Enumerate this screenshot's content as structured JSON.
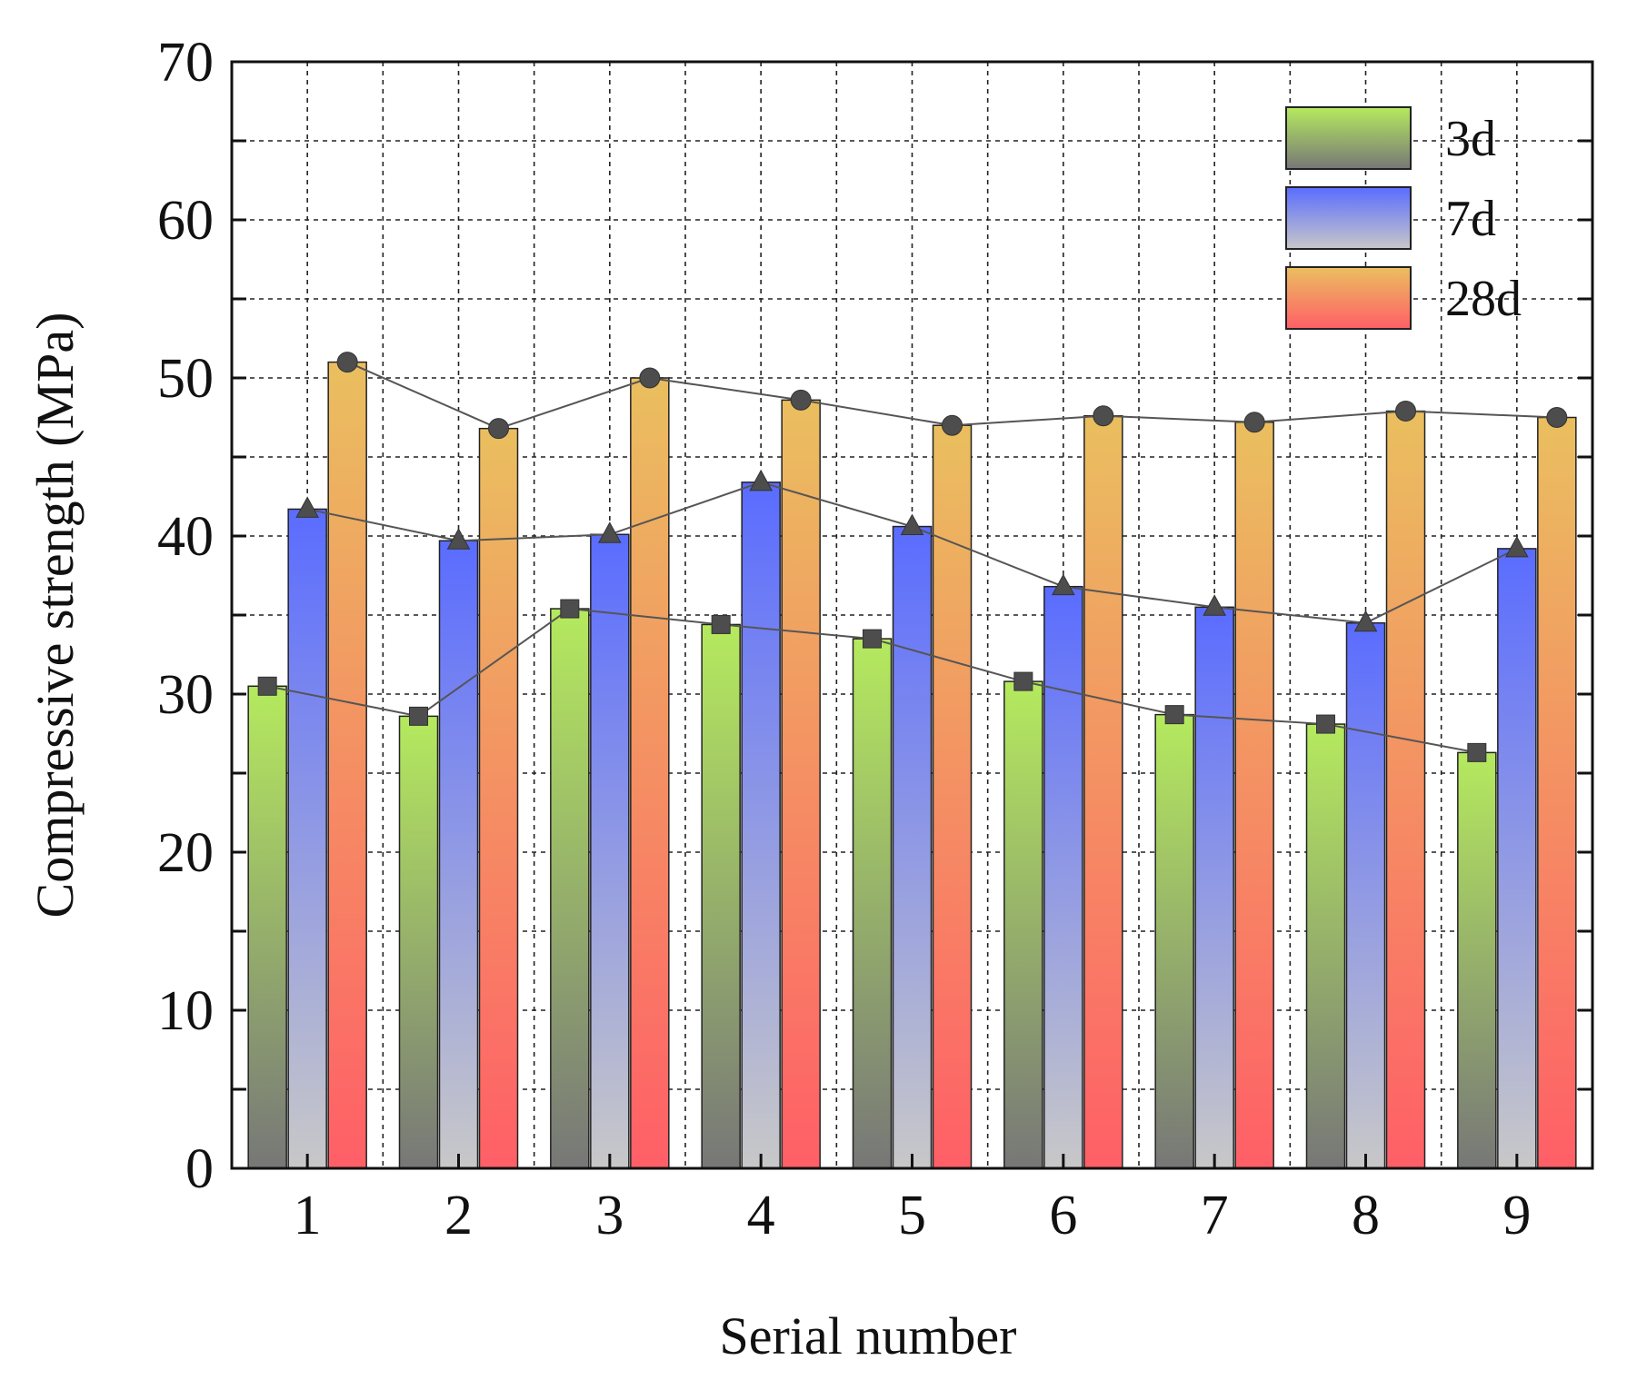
{
  "chart_data": {
    "type": "bar",
    "title": "",
    "xlabel": "Serial number",
    "ylabel": "Compressive strength (MPa)",
    "ylim": [
      0,
      70
    ],
    "yticks": [
      0,
      10,
      20,
      30,
      40,
      50,
      60,
      70
    ],
    "categories": [
      "1",
      "2",
      "3",
      "4",
      "5",
      "6",
      "7",
      "8",
      "9"
    ],
    "grid": true,
    "legend_position": "top-right",
    "series": [
      {
        "name": "3d",
        "values": [
          30.5,
          28.6,
          35.4,
          34.4,
          33.5,
          30.8,
          28.7,
          28.1,
          26.3
        ],
        "marker": "square",
        "gradient_top": "#b5ea5e",
        "gradient_bottom": "#777777"
      },
      {
        "name": "7d",
        "values": [
          41.7,
          39.7,
          40.1,
          43.4,
          40.6,
          36.8,
          35.5,
          34.5,
          39.2
        ],
        "marker": "triangle",
        "gradient_top": "#5a6cff",
        "gradient_bottom": "#c8c8c8"
      },
      {
        "name": "28d",
        "values": [
          51.0,
          46.8,
          50.0,
          48.6,
          47.0,
          47.6,
          47.2,
          47.9,
          47.5
        ],
        "marker": "circle",
        "gradient_top": "#eabf5f",
        "gradient_bottom": "#ff5f67"
      }
    ]
  }
}
